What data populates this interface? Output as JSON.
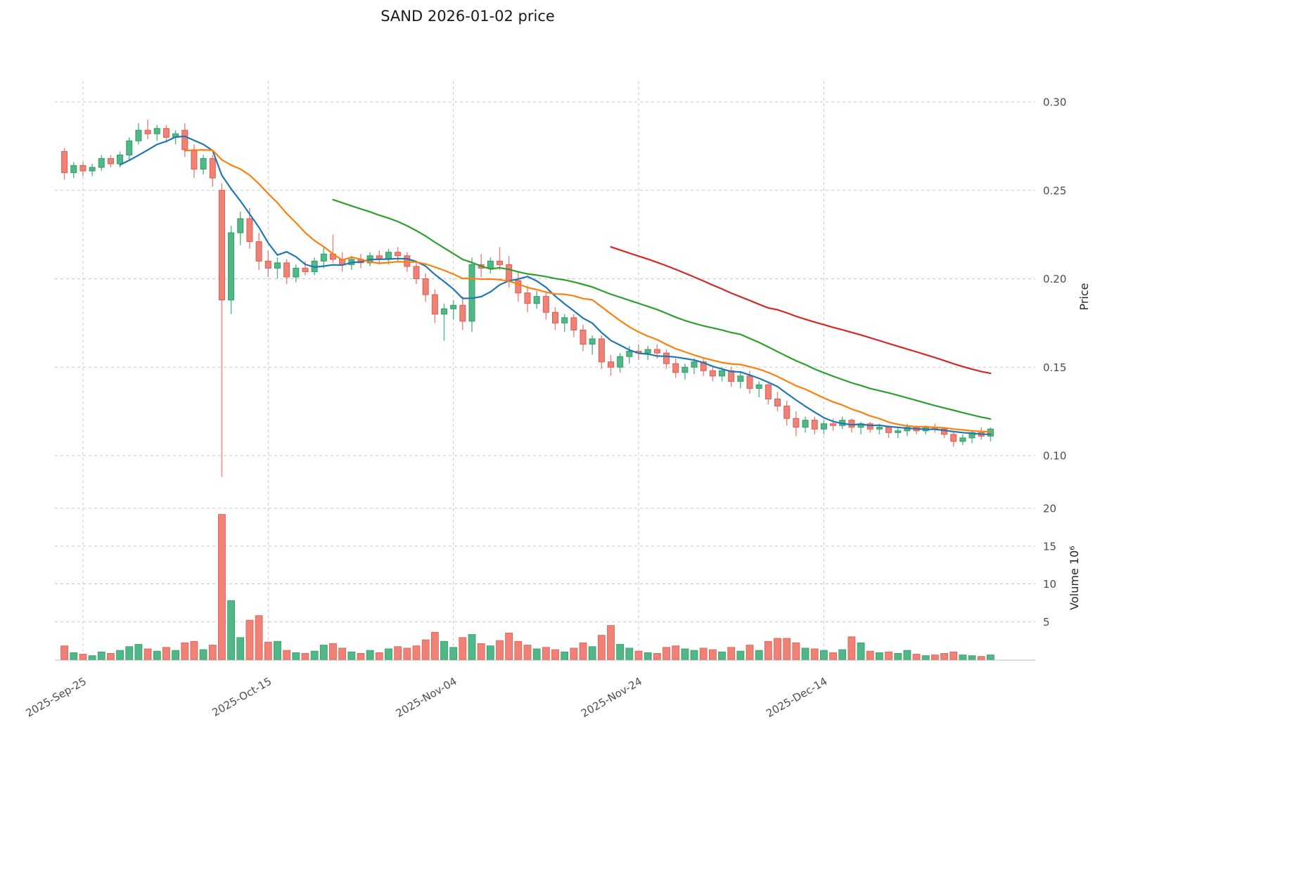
{
  "title": "SAND  2026-01-02  price",
  "axes": {
    "price_axis_label": "Price",
    "volume_axis_label": "Volume  10⁶",
    "price_ticks": [
      "0.30",
      "0.25",
      "0.20",
      "0.15",
      "0.10"
    ],
    "price_tick_values": [
      0.3,
      0.25,
      0.2,
      0.15,
      0.1
    ],
    "volume_ticks": [
      "20",
      "15",
      "10",
      "5"
    ],
    "volume_tick_values": [
      20,
      15,
      10,
      5
    ],
    "x_ticks": [
      {
        "label": "2025-Sep-25",
        "date": "2025-09-25"
      },
      {
        "label": "2025-Oct-15",
        "date": "2025-10-15"
      },
      {
        "label": "2025-Nov-04",
        "date": "2025-11-04"
      },
      {
        "label": "2025-Nov-24",
        "date": "2025-11-24"
      },
      {
        "label": "2025-Dec-14",
        "date": "2025-12-14"
      }
    ]
  },
  "chart_data": {
    "type": "candlestick",
    "title": "SAND  2026-01-02  price",
    "symbol": "SAND",
    "ylabel": "Price",
    "ylabel_lower": "Volume  10⁶",
    "price_axis_range": [
      0.085,
      0.31
    ],
    "volume_axis_range_millions": [
      0,
      21
    ],
    "grid": "dashed",
    "legend": "none",
    "columns": [
      "date",
      "open",
      "high",
      "low",
      "close",
      "volume_millions"
    ],
    "candles": [
      [
        "2025-09-23",
        0.272,
        0.274,
        0.256,
        0.26,
        1.8
      ],
      [
        "2025-09-24",
        0.26,
        0.266,
        0.257,
        0.264,
        0.9
      ],
      [
        "2025-09-25",
        0.264,
        0.266,
        0.258,
        0.261,
        0.7
      ],
      [
        "2025-09-26",
        0.261,
        0.265,
        0.258,
        0.263,
        0.5
      ],
      [
        "2025-09-27",
        0.263,
        0.27,
        0.261,
        0.268,
        1.0
      ],
      [
        "2025-09-28",
        0.268,
        0.27,
        0.263,
        0.265,
        0.8
      ],
      [
        "2025-09-29",
        0.265,
        0.272,
        0.263,
        0.27,
        1.2
      ],
      [
        "2025-09-30",
        0.27,
        0.28,
        0.267,
        0.278,
        1.7
      ],
      [
        "2025-10-01",
        0.278,
        0.288,
        0.276,
        0.284,
        2.0
      ],
      [
        "2025-10-02",
        0.284,
        0.29,
        0.279,
        0.282,
        1.4
      ],
      [
        "2025-10-03",
        0.282,
        0.287,
        0.278,
        0.285,
        1.1
      ],
      [
        "2025-10-04",
        0.285,
        0.287,
        0.277,
        0.28,
        1.6
      ],
      [
        "2025-10-05",
        0.28,
        0.284,
        0.276,
        0.282,
        1.2
      ],
      [
        "2025-10-06",
        0.284,
        0.288,
        0.269,
        0.273,
        2.2
      ],
      [
        "2025-10-07",
        0.273,
        0.276,
        0.257,
        0.262,
        2.4
      ],
      [
        "2025-10-08",
        0.262,
        0.27,
        0.259,
        0.268,
        1.3
      ],
      [
        "2025-10-09",
        0.268,
        0.27,
        0.252,
        0.257,
        1.9
      ],
      [
        "2025-10-10",
        0.25,
        0.254,
        0.088,
        0.188,
        19.2
      ],
      [
        "2025-10-11",
        0.188,
        0.23,
        0.18,
        0.226,
        7.8
      ],
      [
        "2025-10-12",
        0.226,
        0.238,
        0.219,
        0.234,
        2.9
      ],
      [
        "2025-10-13",
        0.234,
        0.24,
        0.217,
        0.221,
        5.2
      ],
      [
        "2025-10-14",
        0.221,
        0.226,
        0.205,
        0.21,
        5.8
      ],
      [
        "2025-10-15",
        0.21,
        0.216,
        0.201,
        0.206,
        2.3
      ],
      [
        "2025-10-16",
        0.206,
        0.212,
        0.2,
        0.209,
        2.4
      ],
      [
        "2025-10-17",
        0.209,
        0.211,
        0.197,
        0.201,
        1.2
      ],
      [
        "2025-10-18",
        0.201,
        0.208,
        0.198,
        0.206,
        0.9
      ],
      [
        "2025-10-19",
        0.206,
        0.21,
        0.202,
        0.204,
        0.8
      ],
      [
        "2025-10-20",
        0.204,
        0.212,
        0.202,
        0.21,
        1.1
      ],
      [
        "2025-10-21",
        0.21,
        0.218,
        0.206,
        0.214,
        1.9
      ],
      [
        "2025-10-22",
        0.214,
        0.225,
        0.209,
        0.211,
        2.1
      ],
      [
        "2025-10-23",
        0.211,
        0.215,
        0.204,
        0.208,
        1.5
      ],
      [
        "2025-10-24",
        0.208,
        0.213,
        0.205,
        0.211,
        1.0
      ],
      [
        "2025-10-25",
        0.211,
        0.214,
        0.206,
        0.209,
        0.8
      ],
      [
        "2025-10-26",
        0.209,
        0.215,
        0.207,
        0.213,
        1.2
      ],
      [
        "2025-10-27",
        0.213,
        0.216,
        0.208,
        0.211,
        0.9
      ],
      [
        "2025-10-28",
        0.211,
        0.217,
        0.208,
        0.215,
        1.4
      ],
      [
        "2025-10-29",
        0.215,
        0.218,
        0.21,
        0.213,
        1.7
      ],
      [
        "2025-10-30",
        0.213,
        0.215,
        0.204,
        0.207,
        1.5
      ],
      [
        "2025-10-31",
        0.207,
        0.21,
        0.197,
        0.2,
        1.8
      ],
      [
        "2025-11-01",
        0.2,
        0.203,
        0.187,
        0.191,
        2.6
      ],
      [
        "2025-11-02",
        0.191,
        0.194,
        0.175,
        0.18,
        3.6
      ],
      [
        "2025-11-03",
        0.18,
        0.186,
        0.165,
        0.183,
        2.4
      ],
      [
        "2025-11-04",
        0.183,
        0.188,
        0.177,
        0.185,
        1.6
      ],
      [
        "2025-11-05",
        0.185,
        0.19,
        0.171,
        0.176,
        2.9
      ],
      [
        "2025-11-06",
        0.176,
        0.212,
        0.17,
        0.208,
        3.3
      ],
      [
        "2025-11-07",
        0.208,
        0.214,
        0.201,
        0.206,
        2.1
      ],
      [
        "2025-11-08",
        0.206,
        0.212,
        0.203,
        0.21,
        1.8
      ],
      [
        "2025-11-09",
        0.21,
        0.218,
        0.205,
        0.208,
        2.5
      ],
      [
        "2025-11-10",
        0.208,
        0.213,
        0.195,
        0.199,
        3.5
      ],
      [
        "2025-11-11",
        0.199,
        0.204,
        0.187,
        0.192,
        2.4
      ],
      [
        "2025-11-12",
        0.192,
        0.196,
        0.181,
        0.186,
        1.9
      ],
      [
        "2025-11-13",
        0.186,
        0.193,
        0.183,
        0.19,
        1.4
      ],
      [
        "2025-11-14",
        0.19,
        0.192,
        0.177,
        0.181,
        1.6
      ],
      [
        "2025-11-15",
        0.181,
        0.184,
        0.171,
        0.175,
        1.3
      ],
      [
        "2025-11-16",
        0.175,
        0.18,
        0.17,
        0.178,
        1.0
      ],
      [
        "2025-11-17",
        0.178,
        0.18,
        0.167,
        0.171,
        1.5
      ],
      [
        "2025-11-18",
        0.171,
        0.174,
        0.159,
        0.163,
        2.2
      ],
      [
        "2025-11-19",
        0.163,
        0.168,
        0.157,
        0.166,
        1.7
      ],
      [
        "2025-11-20",
        0.166,
        0.168,
        0.149,
        0.153,
        3.2
      ],
      [
        "2025-11-21",
        0.153,
        0.157,
        0.145,
        0.15,
        4.5
      ],
      [
        "2025-11-22",
        0.15,
        0.158,
        0.147,
        0.156,
        2.0
      ],
      [
        "2025-11-23",
        0.156,
        0.162,
        0.152,
        0.159,
        1.5
      ],
      [
        "2025-11-24",
        0.159,
        0.163,
        0.154,
        0.158,
        1.1
      ],
      [
        "2025-11-25",
        0.158,
        0.162,
        0.154,
        0.16,
        0.9
      ],
      [
        "2025-11-26",
        0.16,
        0.163,
        0.155,
        0.158,
        0.8
      ],
      [
        "2025-11-27",
        0.158,
        0.16,
        0.149,
        0.152,
        1.6
      ],
      [
        "2025-11-28",
        0.152,
        0.155,
        0.144,
        0.147,
        1.8
      ],
      [
        "2025-11-29",
        0.147,
        0.152,
        0.143,
        0.15,
        1.4
      ],
      [
        "2025-11-30",
        0.15,
        0.155,
        0.146,
        0.153,
        1.2
      ],
      [
        "2025-12-01",
        0.153,
        0.155,
        0.145,
        0.148,
        1.5
      ],
      [
        "2025-12-02",
        0.148,
        0.151,
        0.142,
        0.145,
        1.3
      ],
      [
        "2025-12-03",
        0.145,
        0.15,
        0.142,
        0.148,
        1.0
      ],
      [
        "2025-12-04",
        0.148,
        0.15,
        0.139,
        0.142,
        1.6
      ],
      [
        "2025-12-05",
        0.142,
        0.147,
        0.138,
        0.145,
        1.1
      ],
      [
        "2025-12-06",
        0.145,
        0.148,
        0.135,
        0.138,
        1.9
      ],
      [
        "2025-12-07",
        0.138,
        0.142,
        0.133,
        0.14,
        1.2
      ],
      [
        "2025-12-08",
        0.14,
        0.141,
        0.129,
        0.132,
        2.4
      ],
      [
        "2025-12-09",
        0.132,
        0.136,
        0.125,
        0.128,
        2.8
      ],
      [
        "2025-12-10",
        0.128,
        0.131,
        0.117,
        0.121,
        2.8
      ],
      [
        "2025-12-11",
        0.121,
        0.125,
        0.111,
        0.116,
        2.2
      ],
      [
        "2025-12-12",
        0.116,
        0.122,
        0.113,
        0.12,
        1.5
      ],
      [
        "2025-12-13",
        0.12,
        0.122,
        0.112,
        0.115,
        1.4
      ],
      [
        "2025-12-14",
        0.115,
        0.12,
        0.112,
        0.118,
        1.2
      ],
      [
        "2025-12-15",
        0.118,
        0.121,
        0.114,
        0.117,
        0.9
      ],
      [
        "2025-12-16",
        0.117,
        0.122,
        0.115,
        0.12,
        1.3
      ],
      [
        "2025-12-17",
        0.12,
        0.121,
        0.113,
        0.116,
        3.0
      ],
      [
        "2025-12-18",
        0.116,
        0.119,
        0.112,
        0.118,
        2.2
      ],
      [
        "2025-12-19",
        0.118,
        0.119,
        0.113,
        0.115,
        1.1
      ],
      [
        "2025-12-20",
        0.115,
        0.118,
        0.112,
        0.116,
        0.9
      ],
      [
        "2025-12-21",
        0.116,
        0.117,
        0.11,
        0.113,
        1.0
      ],
      [
        "2025-12-22",
        0.113,
        0.116,
        0.11,
        0.114,
        0.8
      ],
      [
        "2025-12-23",
        0.114,
        0.118,
        0.111,
        0.116,
        1.2
      ],
      [
        "2025-12-24",
        0.116,
        0.117,
        0.112,
        0.114,
        0.7
      ],
      [
        "2025-12-25",
        0.114,
        0.117,
        0.112,
        0.116,
        0.5
      ],
      [
        "2025-12-26",
        0.116,
        0.118,
        0.113,
        0.115,
        0.6
      ],
      [
        "2025-12-27",
        0.115,
        0.116,
        0.11,
        0.112,
        0.8
      ],
      [
        "2025-12-28",
        0.112,
        0.114,
        0.105,
        0.108,
        1.0
      ],
      [
        "2025-12-29",
        0.108,
        0.112,
        0.106,
        0.11,
        0.6
      ],
      [
        "2025-12-30",
        0.11,
        0.114,
        0.107,
        0.113,
        0.5
      ],
      [
        "2025-12-31",
        0.113,
        0.116,
        0.109,
        0.111,
        0.4
      ],
      [
        "2026-01-01",
        0.111,
        0.116,
        0.108,
        0.115,
        0.6
      ]
    ],
    "moving_averages": [
      {
        "name": "MA7",
        "period": 7,
        "color": "#1f77b4"
      },
      {
        "name": "MA14",
        "period": 14,
        "color": "#ff7f0e"
      },
      {
        "name": "MA30",
        "period": 30,
        "color": "#2ca02c"
      },
      {
        "name": "MA60",
        "period": 60,
        "color": "#d62728"
      }
    ],
    "colors": {
      "up": "#52b788",
      "up_edge": "#2d9e63",
      "down": "#ef8177",
      "down_edge": "#e05c4f",
      "grid": "#c9c9c9",
      "tick_text": "#4d4d4d",
      "title_text": "#1a1a1a"
    }
  }
}
